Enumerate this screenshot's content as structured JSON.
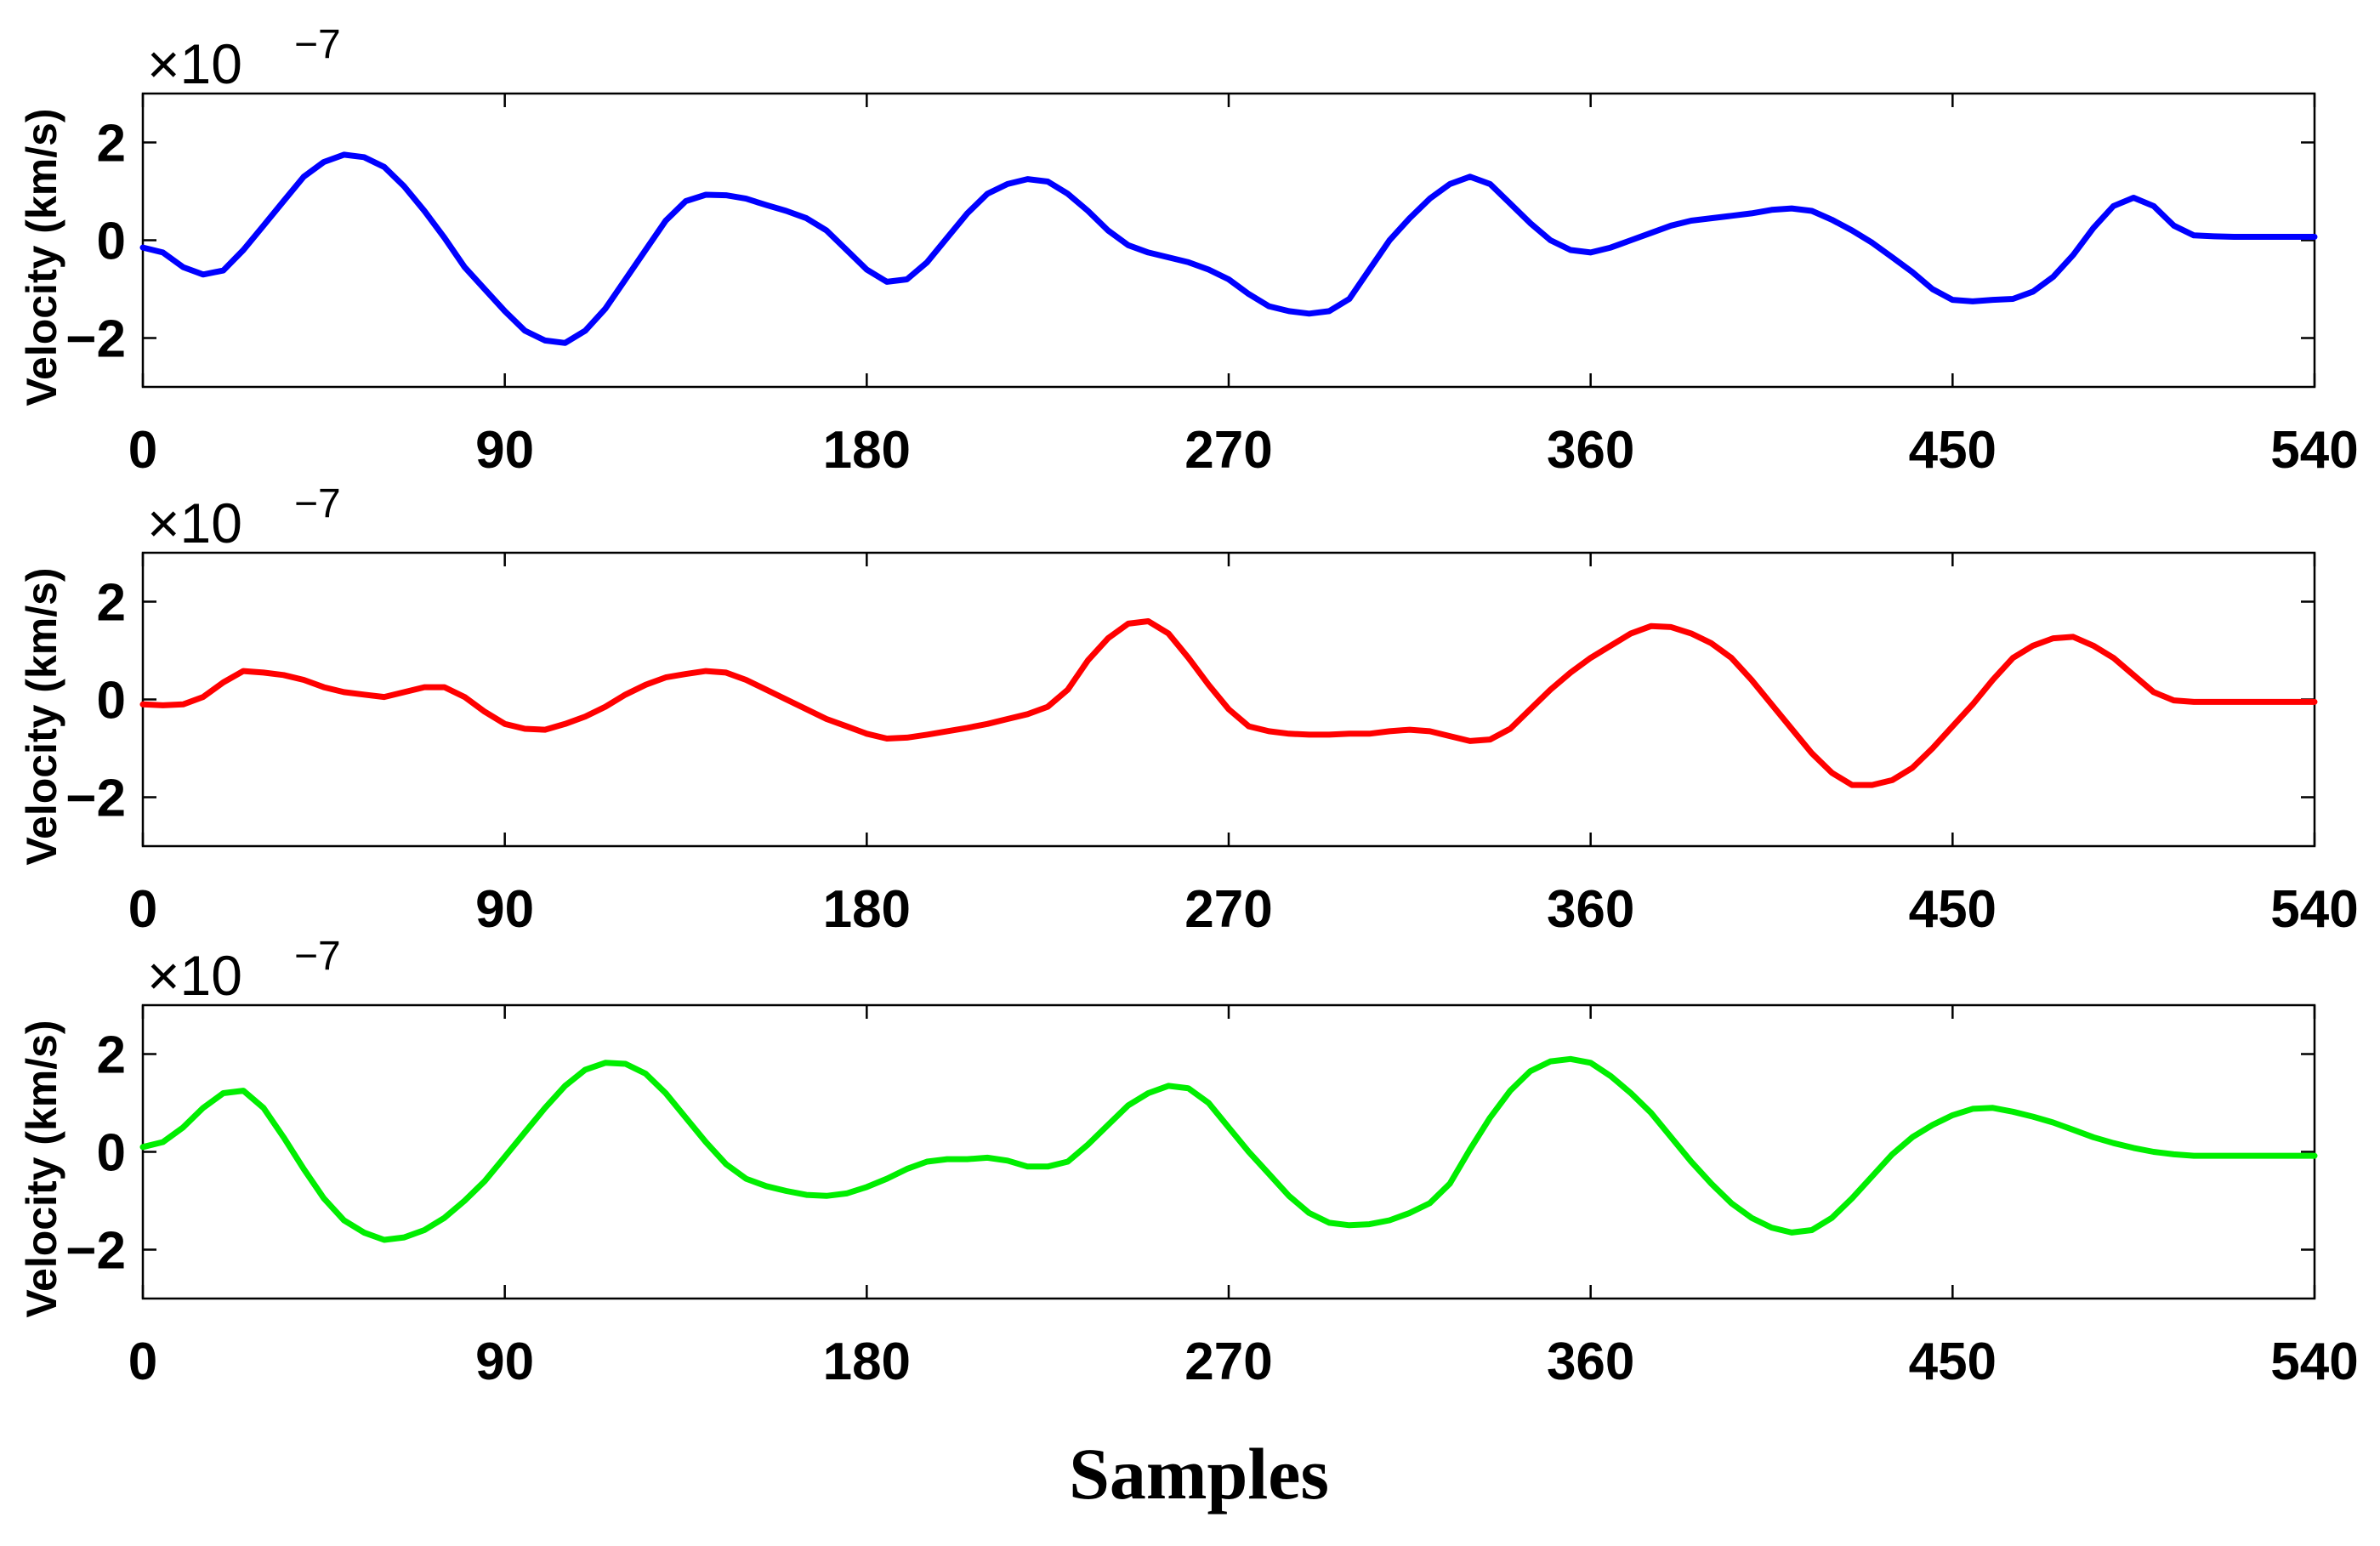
{
  "figure": {
    "xlabel": "Samples"
  },
  "chart_data": [
    {
      "type": "line",
      "ylabel": "Velocity (km/s)",
      "multiplier": {
        "base": "×10",
        "exponent": "−7"
      },
      "xlim": [
        0,
        540
      ],
      "ylim": [
        -3,
        3
      ],
      "xticks": [
        "0",
        "90",
        "180",
        "270",
        "360",
        "450",
        "540"
      ],
      "yticks": [
        "2",
        "0",
        "−2"
      ],
      "series": [
        {
          "color": "#0000ff",
          "x": [
            0,
            5,
            10,
            15,
            20,
            25,
            30,
            35,
            40,
            45,
            50,
            55,
            60,
            65,
            70,
            75,
            80,
            85,
            90,
            95,
            100,
            105,
            110,
            115,
            120,
            125,
            130,
            135,
            140,
            145,
            150,
            155,
            160,
            165,
            170,
            175,
            180,
            185,
            190,
            195,
            200,
            205,
            210,
            215,
            220,
            225,
            230,
            235,
            240,
            245,
            250,
            255,
            260,
            265,
            270,
            275,
            280,
            285,
            290,
            295,
            300,
            305,
            310,
            315,
            320,
            325,
            330,
            335,
            340,
            345,
            350,
            355,
            360,
            365,
            370,
            375,
            380,
            385,
            390,
            395,
            400,
            405,
            410,
            415,
            420,
            425,
            430,
            435,
            440,
            445,
            450,
            455,
            460,
            465,
            470,
            475,
            480,
            485,
            490,
            495,
            500,
            505,
            510,
            515,
            520,
            525,
            530,
            535,
            540
          ],
          "y": [
            -0.15,
            -0.25,
            -0.55,
            -0.7,
            -0.62,
            -0.2,
            0.3,
            0.8,
            1.3,
            1.6,
            1.75,
            1.7,
            1.5,
            1.1,
            0.6,
            0.05,
            -0.55,
            -1.0,
            -1.45,
            -1.85,
            -2.05,
            -2.1,
            -1.85,
            -1.4,
            -0.8,
            -0.2,
            0.4,
            0.8,
            0.93,
            0.92,
            0.85,
            0.72,
            0.6,
            0.45,
            0.2,
            -0.2,
            -0.6,
            -0.85,
            -0.8,
            -0.45,
            0.05,
            0.55,
            0.95,
            1.15,
            1.25,
            1.2,
            0.95,
            0.6,
            0.2,
            -0.1,
            -0.25,
            -0.35,
            -0.45,
            -0.6,
            -0.8,
            -1.1,
            -1.35,
            -1.45,
            -1.5,
            -1.45,
            -1.2,
            -0.6,
            0.0,
            0.45,
            0.85,
            1.15,
            1.3,
            1.15,
            0.75,
            0.35,
            0.0,
            -0.2,
            -0.25,
            -0.15,
            0.0,
            0.15,
            0.3,
            0.4,
            0.45,
            0.5,
            0.55,
            0.62,
            0.65,
            0.6,
            0.42,
            0.2,
            -0.05,
            -0.35,
            -0.65,
            -1.0,
            -1.22,
            -1.25,
            -1.22,
            -1.2,
            -1.05,
            -0.75,
            -0.3,
            0.25,
            0.7,
            0.87,
            0.7,
            0.3,
            0.1,
            0.08,
            0.07,
            0.07,
            0.07,
            0.07,
            0.07
          ]
        }
      ]
    },
    {
      "type": "line",
      "ylabel": "Velocity (km/s)",
      "multiplier": {
        "base": "×10",
        "exponent": "−7"
      },
      "xlim": [
        0,
        540
      ],
      "ylim": [
        -3,
        3
      ],
      "xticks": [
        "0",
        "90",
        "180",
        "270",
        "360",
        "450",
        "540"
      ],
      "yticks": [
        "2",
        "0",
        "−2"
      ],
      "series": [
        {
          "color": "#ff0000",
          "x": [
            0,
            5,
            10,
            15,
            20,
            25,
            30,
            35,
            40,
            45,
            50,
            55,
            60,
            65,
            70,
            75,
            80,
            85,
            90,
            95,
            100,
            105,
            110,
            115,
            120,
            125,
            130,
            135,
            140,
            145,
            150,
            155,
            160,
            165,
            170,
            175,
            180,
            185,
            190,
            195,
            200,
            205,
            210,
            215,
            220,
            225,
            230,
            235,
            240,
            245,
            250,
            255,
            260,
            265,
            270,
            275,
            280,
            285,
            290,
            295,
            300,
            305,
            310,
            315,
            320,
            325,
            330,
            335,
            340,
            345,
            350,
            355,
            360,
            365,
            370,
            375,
            380,
            385,
            390,
            395,
            400,
            405,
            410,
            415,
            420,
            425,
            430,
            435,
            440,
            445,
            450,
            455,
            460,
            465,
            470,
            475,
            480,
            485,
            490,
            495,
            500,
            505,
            510,
            515,
            520,
            525,
            530,
            535,
            540
          ],
          "y": [
            -0.1,
            -0.12,
            -0.1,
            0.05,
            0.35,
            0.58,
            0.55,
            0.5,
            0.4,
            0.25,
            0.15,
            0.1,
            0.05,
            0.15,
            0.25,
            0.25,
            0.05,
            -0.25,
            -0.5,
            -0.6,
            -0.62,
            -0.5,
            -0.35,
            -0.15,
            0.1,
            0.3,
            0.45,
            0.52,
            0.58,
            0.55,
            0.4,
            0.2,
            0.0,
            -0.2,
            -0.4,
            -0.55,
            -0.7,
            -0.8,
            -0.78,
            -0.72,
            -0.65,
            -0.58,
            -0.5,
            -0.4,
            -0.3,
            -0.15,
            0.2,
            0.8,
            1.25,
            1.55,
            1.6,
            1.35,
            0.85,
            0.3,
            -0.2,
            -0.55,
            -0.65,
            -0.7,
            -0.72,
            -0.72,
            -0.7,
            -0.7,
            -0.65,
            -0.62,
            -0.65,
            -0.75,
            -0.85,
            -0.82,
            -0.6,
            -0.2,
            0.2,
            0.55,
            0.85,
            1.1,
            1.35,
            1.5,
            1.48,
            1.35,
            1.15,
            0.85,
            0.4,
            -0.1,
            -0.6,
            -1.1,
            -1.5,
            -1.75,
            -1.75,
            -1.65,
            -1.4,
            -1.0,
            -0.55,
            -0.1,
            0.4,
            0.85,
            1.1,
            1.25,
            1.28,
            1.1,
            0.85,
            0.5,
            0.15,
            -0.02,
            -0.05,
            -0.05,
            -0.05,
            -0.05,
            -0.05,
            -0.05,
            -0.05
          ]
        }
      ]
    },
    {
      "type": "line",
      "ylabel": "Velocity (km/s)",
      "multiplier": {
        "base": "×10",
        "exponent": "−7"
      },
      "xlim": [
        0,
        540
      ],
      "ylim": [
        -3,
        3
      ],
      "xticks": [
        "0",
        "90",
        "180",
        "270",
        "360",
        "450",
        "540"
      ],
      "yticks": [
        "2",
        "0",
        "−2"
      ],
      "series": [
        {
          "color": "#00ee00",
          "x": [
            0,
            5,
            10,
            15,
            20,
            25,
            30,
            35,
            40,
            45,
            50,
            55,
            60,
            65,
            70,
            75,
            80,
            85,
            90,
            95,
            100,
            105,
            110,
            115,
            120,
            125,
            130,
            135,
            140,
            145,
            150,
            155,
            160,
            165,
            170,
            175,
            180,
            185,
            190,
            195,
            200,
            205,
            210,
            215,
            220,
            225,
            230,
            235,
            240,
            245,
            250,
            255,
            260,
            265,
            270,
            275,
            280,
            285,
            290,
            295,
            300,
            305,
            310,
            315,
            320,
            325,
            330,
            335,
            340,
            345,
            350,
            355,
            360,
            365,
            370,
            375,
            380,
            385,
            390,
            395,
            400,
            405,
            410,
            415,
            420,
            425,
            430,
            435,
            440,
            445,
            450,
            455,
            460,
            465,
            470,
            475,
            480,
            485,
            490,
            495,
            500,
            505,
            510,
            515,
            520,
            525,
            530,
            535,
            540
          ],
          "y": [
            0.1,
            0.2,
            0.5,
            0.9,
            1.2,
            1.25,
            0.9,
            0.3,
            -0.35,
            -0.95,
            -1.4,
            -1.65,
            -1.8,
            -1.75,
            -1.6,
            -1.35,
            -1.0,
            -0.6,
            -0.1,
            0.4,
            0.9,
            1.35,
            1.68,
            1.82,
            1.8,
            1.6,
            1.2,
            0.7,
            0.2,
            -0.25,
            -0.55,
            -0.7,
            -0.8,
            -0.88,
            -0.9,
            -0.85,
            -0.72,
            -0.55,
            -0.35,
            -0.2,
            -0.15,
            -0.15,
            -0.12,
            -0.18,
            -0.3,
            -0.3,
            -0.2,
            0.15,
            0.55,
            0.95,
            1.2,
            1.35,
            1.3,
            1.0,
            0.5,
            0.0,
            -0.45,
            -0.9,
            -1.25,
            -1.45,
            -1.5,
            -1.48,
            -1.4,
            -1.25,
            -1.05,
            -0.65,
            0.05,
            0.7,
            1.25,
            1.65,
            1.85,
            1.9,
            1.82,
            1.55,
            1.2,
            0.8,
            0.3,
            -0.2,
            -0.65,
            -1.05,
            -1.35,
            -1.55,
            -1.65,
            -1.6,
            -1.35,
            -0.95,
            -0.5,
            -0.05,
            0.3,
            0.55,
            0.75,
            0.88,
            0.9,
            0.82,
            0.72,
            0.6,
            0.45,
            0.3,
            0.18,
            0.08,
            0.0,
            -0.05,
            -0.08,
            -0.08,
            -0.08,
            -0.08,
            -0.08,
            -0.08,
            -0.08
          ]
        }
      ]
    }
  ]
}
